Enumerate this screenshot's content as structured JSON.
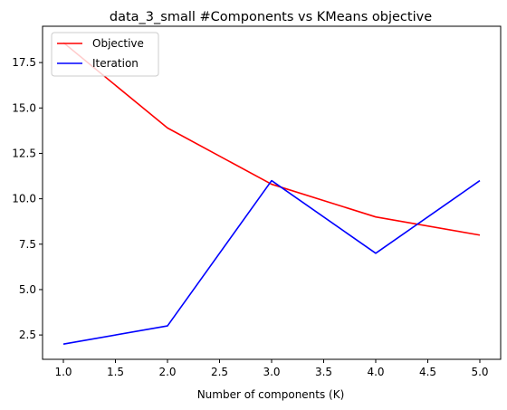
{
  "chart_data": {
    "type": "line",
    "title": "data_3_small #Components vs KMeans objective",
    "xlabel": "Number of components (K)",
    "ylabel": "",
    "x": [
      1,
      2,
      3,
      4,
      5
    ],
    "xlim": [
      0.8,
      5.2
    ],
    "ylim": [
      1.16,
      19.5
    ],
    "xticks": [
      1.0,
      1.5,
      2.0,
      2.5,
      3.0,
      3.5,
      4.0,
      4.5,
      5.0
    ],
    "yticks": [
      2.5,
      5.0,
      7.5,
      10.0,
      12.5,
      15.0,
      17.5
    ],
    "xtick_labels": [
      "1.0",
      "1.5",
      "2.0",
      "2.5",
      "3.0",
      "3.5",
      "4.0",
      "4.5",
      "5.0"
    ],
    "ytick_labels": [
      "2.5",
      "5.0",
      "7.5",
      "10.0",
      "12.5",
      "15.0",
      "17.5"
    ],
    "grid": false,
    "legend_position": "top-left",
    "series": [
      {
        "name": "Objective",
        "color": "#ff0000",
        "values": [
          18.6,
          13.9,
          10.8,
          9.0,
          8.0
        ]
      },
      {
        "name": "Iteration",
        "color": "#0000ff",
        "values": [
          2.0,
          3.0,
          11.0,
          7.0,
          11.0
        ]
      }
    ]
  }
}
